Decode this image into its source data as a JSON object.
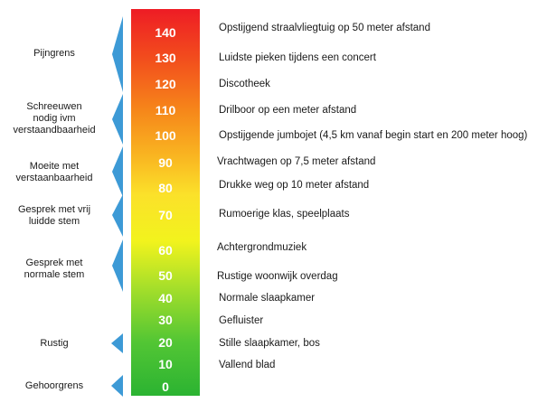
{
  "scale": {
    "values": [
      "140",
      "130",
      "120",
      "110",
      "100",
      "90",
      "80",
      "70",
      "60",
      "50",
      "40",
      "30",
      "20",
      "10",
      "0"
    ],
    "descriptions": [
      "Opstijgend straalvliegtuig op 50 meter afstand",
      "Luidste pieken tijdens een concert",
      "Discotheek",
      "Drilboor op een meter afstand",
      "Opstijgende jumbojet (4,5 km vanaf begin start en 200 meter hoog)",
      "Vrachtwagen op 7,5 meter afstand",
      "Drukke weg op 10 meter afstand",
      "Rumoerige klas, speelplaats",
      "Achtergrondmuziek",
      "Rustige woonwijk overdag",
      "Normale slaapkamer",
      "Gefluister",
      "Stille slaapkamer, bos",
      "Vallend blad",
      ""
    ]
  },
  "categories": [
    {
      "lines": [
        "Pijngrens"
      ]
    },
    {
      "lines": [
        "Schreeuwen",
        "nodig ivm",
        "verstaandbaarheid"
      ]
    },
    {
      "lines": [
        "Moeite met",
        "verstaanbaarheid"
      ]
    },
    {
      "lines": [
        "Gesprek met vrij",
        "luidde stem"
      ]
    },
    {
      "lines": [
        "Gesprek met",
        "normale stem"
      ]
    },
    {
      "lines": [
        "Rustig"
      ]
    },
    {
      "lines": [
        "Gehoorgrens"
      ]
    }
  ],
  "colors": {
    "bracket": "#3d9ad6",
    "bar_top": "#ee1c25",
    "bar_mid": "#fbe12a",
    "bar_bottom": "#2bb332"
  }
}
